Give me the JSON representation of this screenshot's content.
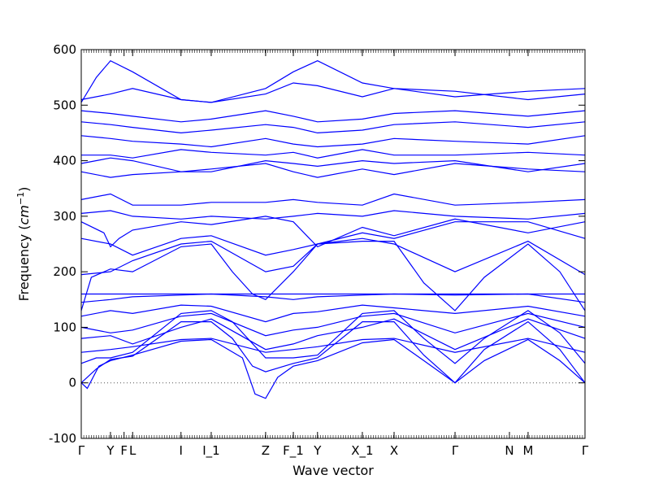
{
  "chart_data": {
    "type": "line",
    "title": "",
    "xlabel": "Wave vector",
    "ylabel": "Frequency",
    "ylabel_unit": "cm",
    "ylabel_unit_exp": "−1",
    "ylim": [
      -100,
      600
    ],
    "y_ticks": [
      -100,
      0,
      100,
      200,
      300,
      400,
      500,
      600
    ],
    "xlim": [
      0,
      1
    ],
    "x_ticks": [
      {
        "label": "Γ",
        "pos": 0.0
      },
      {
        "label": "Y",
        "pos": 0.058
      },
      {
        "label": "F",
        "pos": 0.085
      },
      {
        "label": "L",
        "pos": 0.102
      },
      {
        "label": "I",
        "pos": 0.198
      },
      {
        "label": "I_1",
        "pos": 0.258
      },
      {
        "label": "Z",
        "pos": 0.366
      },
      {
        "label": "F_1",
        "pos": 0.421
      },
      {
        "label": "Y",
        "pos": 0.469
      },
      {
        "label": "X_1",
        "pos": 0.558
      },
      {
        "label": "X",
        "pos": 0.621
      },
      {
        "label": "Γ",
        "pos": 0.742
      },
      {
        "label": "N",
        "pos": 0.85
      },
      {
        "label": "M",
        "pos": 0.887
      },
      {
        "label": "Γ",
        "pos": 1.0
      }
    ],
    "line_color": "#0000ff",
    "zero_line": {
      "y": 0,
      "style": "dotted"
    },
    "grid": false,
    "series": [
      {
        "x": [
          0,
          0.012,
          0.035,
          0.058,
          0.102,
          0.198,
          0.258,
          0.32,
          0.345,
          0.366,
          0.39,
          0.421,
          0.469,
          0.558,
          0.621,
          0.68,
          0.742,
          0.8,
          0.887,
          0.95,
          1.0
        ],
        "y": [
          0,
          -10,
          30,
          40,
          50,
          75,
          78,
          45,
          -20,
          -28,
          10,
          30,
          40,
          72,
          78,
          40,
          0,
          40,
          78,
          40,
          0
        ]
      },
      {
        "x": [
          0,
          0.03,
          0.058,
          0.102,
          0.198,
          0.258,
          0.3,
          0.34,
          0.366,
          0.421,
          0.469,
          0.558,
          0.621,
          0.68,
          0.742,
          0.8,
          0.887,
          0.95,
          1.0
        ],
        "y": [
          0,
          25,
          42,
          48,
          110,
          110,
          80,
          30,
          20,
          35,
          45,
          110,
          110,
          50,
          0,
          60,
          110,
          60,
          0
        ]
      },
      {
        "x": [
          0,
          0.03,
          0.058,
          0.102,
          0.198,
          0.258,
          0.3,
          0.366,
          0.421,
          0.469,
          0.558,
          0.621,
          0.68,
          0.742,
          0.8,
          0.887,
          0.95,
          1.0
        ],
        "y": [
          35,
          45,
          45,
          55,
          125,
          130,
          110,
          45,
          45,
          50,
          125,
          130,
          80,
          35,
          80,
          130,
          90,
          35
        ]
      },
      {
        "x": [
          0,
          0.058,
          0.102,
          0.198,
          0.258,
          0.366,
          0.421,
          0.469,
          0.558,
          0.621,
          0.742,
          0.887,
          1.0
        ],
        "y": [
          55,
          60,
          65,
          78,
          80,
          55,
          60,
          65,
          78,
          80,
          55,
          80,
          55
        ]
      },
      {
        "x": [
          0,
          0.058,
          0.102,
          0.198,
          0.258,
          0.366,
          0.421,
          0.469,
          0.558,
          0.621,
          0.742,
          0.887,
          1.0
        ],
        "y": [
          80,
          85,
          70,
          100,
          115,
          60,
          70,
          85,
          100,
          115,
          60,
          115,
          80
        ]
      },
      {
        "x": [
          0,
          0.058,
          0.102,
          0.198,
          0.258,
          0.366,
          0.421,
          0.469,
          0.558,
          0.621,
          0.742,
          0.887,
          1.0
        ],
        "y": [
          100,
          90,
          95,
          120,
          125,
          85,
          95,
          100,
          120,
          125,
          90,
          125,
          100
        ]
      },
      {
        "x": [
          0,
          0.058,
          0.102,
          0.198,
          0.258,
          0.366,
          0.421,
          0.469,
          0.558,
          0.621,
          0.742,
          0.887,
          1.0
        ],
        "y": [
          120,
          130,
          125,
          140,
          138,
          110,
          125,
          128,
          140,
          135,
          125,
          138,
          120
        ]
      },
      {
        "x": [
          0,
          0.058,
          0.102,
          0.198,
          0.258,
          0.366,
          0.421,
          0.469,
          0.558,
          0.621,
          0.742,
          0.887,
          1.0
        ],
        "y": [
          145,
          150,
          155,
          158,
          160,
          155,
          150,
          155,
          158,
          160,
          158,
          160,
          145
        ]
      },
      {
        "x": [
          0,
          0.058,
          0.102,
          0.198,
          0.258,
          0.366,
          0.421,
          0.469,
          0.558,
          0.621,
          0.742,
          0.887,
          1.0
        ],
        "y": [
          160,
          160,
          160,
          160,
          160,
          160,
          160,
          160,
          160,
          160,
          160,
          160,
          160
        ]
      },
      {
        "x": [
          0,
          0.02,
          0.058,
          0.102,
          0.198,
          0.258,
          0.3,
          0.34,
          0.366,
          0.421,
          0.469,
          0.558,
          0.621,
          0.68,
          0.742,
          0.8,
          0.887,
          0.95,
          1.0
        ],
        "y": [
          130,
          190,
          205,
          200,
          245,
          250,
          200,
          160,
          150,
          200,
          250,
          255,
          255,
          180,
          130,
          190,
          250,
          200,
          130
        ]
      },
      {
        "x": [
          0,
          0.058,
          0.102,
          0.198,
          0.258,
          0.366,
          0.421,
          0.469,
          0.558,
          0.621,
          0.742,
          0.887,
          1.0
        ],
        "y": [
          195,
          200,
          220,
          250,
          255,
          200,
          210,
          250,
          260,
          250,
          200,
          255,
          195
        ]
      },
      {
        "x": [
          0,
          0.058,
          0.102,
          0.198,
          0.258,
          0.366,
          0.421,
          0.469,
          0.558,
          0.621,
          0.742,
          0.887,
          1.0
        ],
        "y": [
          260,
          250,
          230,
          260,
          265,
          230,
          240,
          250,
          270,
          260,
          290,
          290,
          260
        ]
      },
      {
        "x": [
          0,
          0.045,
          0.058,
          0.075,
          0.102,
          0.198,
          0.258,
          0.366,
          0.421,
          0.469,
          0.558,
          0.621,
          0.742,
          0.887,
          1.0
        ],
        "y": [
          290,
          270,
          245,
          260,
          275,
          290,
          285,
          300,
          290,
          245,
          280,
          265,
          295,
          270,
          290
        ]
      },
      {
        "x": [
          0,
          0.058,
          0.102,
          0.198,
          0.258,
          0.366,
          0.421,
          0.469,
          0.558,
          0.621,
          0.742,
          0.887,
          1.0
        ],
        "y": [
          305,
          310,
          300,
          295,
          300,
          295,
          300,
          305,
          300,
          310,
          300,
          295,
          305
        ]
      },
      {
        "x": [
          0,
          0.058,
          0.102,
          0.198,
          0.258,
          0.366,
          0.421,
          0.469,
          0.558,
          0.621,
          0.742,
          0.887,
          1.0
        ],
        "y": [
          330,
          340,
          320,
          320,
          325,
          325,
          330,
          325,
          320,
          340,
          320,
          325,
          330
        ]
      },
      {
        "x": [
          0,
          0.058,
          0.102,
          0.198,
          0.258,
          0.366,
          0.421,
          0.469,
          0.558,
          0.621,
          0.742,
          0.887,
          1.0
        ],
        "y": [
          380,
          370,
          375,
          380,
          385,
          395,
          380,
          370,
          385,
          375,
          395,
          385,
          380
        ]
      },
      {
        "x": [
          0,
          0.058,
          0.102,
          0.198,
          0.258,
          0.366,
          0.421,
          0.469,
          0.558,
          0.621,
          0.742,
          0.887,
          1.0
        ],
        "y": [
          395,
          405,
          400,
          380,
          380,
          400,
          395,
          390,
          400,
          395,
          400,
          380,
          395
        ]
      },
      {
        "x": [
          0,
          0.058,
          0.102,
          0.198,
          0.258,
          0.366,
          0.421,
          0.469,
          0.558,
          0.621,
          0.742,
          0.887,
          1.0
        ],
        "y": [
          410,
          410,
          405,
          420,
          415,
          410,
          415,
          405,
          420,
          410,
          410,
          415,
          410
        ]
      },
      {
        "x": [
          0,
          0.058,
          0.102,
          0.198,
          0.258,
          0.366,
          0.421,
          0.469,
          0.558,
          0.621,
          0.742,
          0.887,
          1.0
        ],
        "y": [
          445,
          440,
          435,
          430,
          425,
          440,
          430,
          425,
          430,
          440,
          435,
          430,
          445
        ]
      },
      {
        "x": [
          0,
          0.058,
          0.102,
          0.198,
          0.258,
          0.366,
          0.421,
          0.469,
          0.558,
          0.621,
          0.742,
          0.887,
          1.0
        ],
        "y": [
          470,
          465,
          460,
          450,
          455,
          465,
          460,
          450,
          455,
          465,
          470,
          460,
          470
        ]
      },
      {
        "x": [
          0,
          0.058,
          0.102,
          0.198,
          0.258,
          0.366,
          0.421,
          0.469,
          0.558,
          0.621,
          0.742,
          0.887,
          1.0
        ],
        "y": [
          490,
          485,
          480,
          470,
          475,
          490,
          480,
          470,
          475,
          485,
          490,
          480,
          490
        ]
      },
      {
        "x": [
          0,
          0.058,
          0.102,
          0.198,
          0.258,
          0.366,
          0.421,
          0.469,
          0.558,
          0.621,
          0.742,
          0.887,
          1.0
        ],
        "y": [
          510,
          520,
          530,
          510,
          505,
          520,
          540,
          535,
          515,
          530,
          525,
          510,
          520
        ]
      },
      {
        "x": [
          0,
          0.03,
          0.058,
          0.102,
          0.198,
          0.258,
          0.366,
          0.421,
          0.469,
          0.558,
          0.621,
          0.742,
          0.887,
          1.0
        ],
        "y": [
          505,
          550,
          580,
          560,
          510,
          505,
          530,
          560,
          580,
          540,
          530,
          515,
          525,
          530
        ]
      }
    ]
  }
}
